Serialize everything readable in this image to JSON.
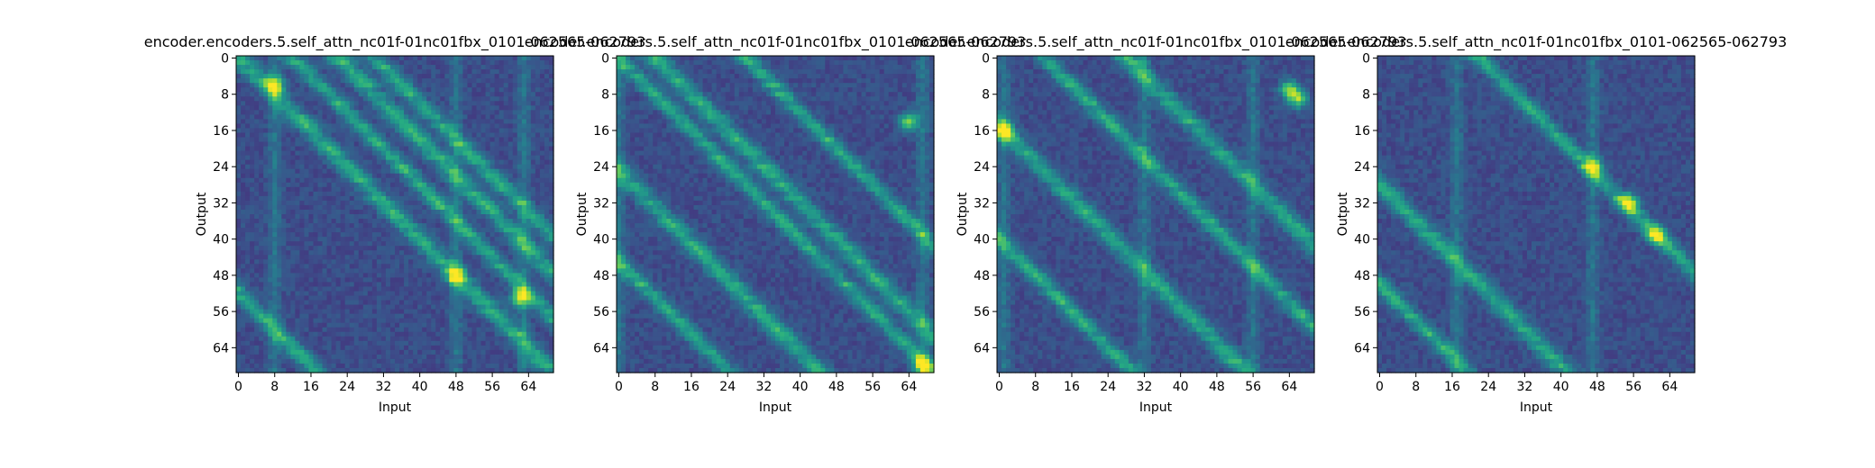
{
  "chart_data": [
    {
      "type": "heatmap",
      "title": "encoder.encoders.5.self_attn_nc01f-01nc01fbx_0101-062565-062793",
      "xlabel": "Input",
      "ylabel": "Output",
      "xticks": [
        "0",
        "8",
        "16",
        "24",
        "32",
        "40",
        "48",
        "56",
        "64"
      ],
      "yticks": [
        "0",
        "8",
        "16",
        "24",
        "32",
        "40",
        "48",
        "56",
        "64"
      ],
      "n_rows": 70,
      "n_cols": 70,
      "colormap": "viridis",
      "diagonal_offsets": [
        -52,
        0,
        12,
        22,
        30
      ],
      "vertical_bands": [
        8,
        48,
        63
      ],
      "hotspots": [
        [
          8,
          6
        ],
        [
          62,
          53
        ],
        [
          48,
          48
        ]
      ]
    },
    {
      "type": "heatmap",
      "title": "encoder.encoders.5.self_attn_nc01f-01nc01fbx_0101-062565-062793",
      "xlabel": "Input",
      "ylabel": "Output",
      "xticks": [
        "0",
        "8",
        "16",
        "24",
        "32",
        "40",
        "48",
        "56",
        "64"
      ],
      "yticks": [
        "0",
        "8",
        "16",
        "24",
        "32",
        "40",
        "48",
        "56",
        "64"
      ],
      "n_rows": 70,
      "n_cols": 70,
      "colormap": "viridis",
      "diagonal_offsets": [
        -45,
        -25,
        0,
        8,
        28
      ],
      "vertical_bands": [
        0,
        67
      ],
      "hotspots": [
        [
          67,
          68
        ],
        [
          64,
          14
        ]
      ]
    },
    {
      "type": "heatmap",
      "title": "encoder.encoders.5.self_attn_nc01f-01nc01fbx_0101-062565-062793",
      "xlabel": "Input",
      "ylabel": "Output",
      "xticks": [
        "0",
        "8",
        "16",
        "24",
        "32",
        "40",
        "48",
        "56",
        "64"
      ],
      "yticks": [
        "0",
        "8",
        "16",
        "24",
        "32",
        "40",
        "48",
        "56",
        "64"
      ],
      "n_rows": 70,
      "n_cols": 70,
      "colormap": "viridis",
      "diagonal_offsets": [
        -40,
        -15,
        10,
        28
      ],
      "vertical_bands": [
        1,
        32,
        56
      ],
      "hotspots": [
        [
          1,
          16
        ],
        [
          64,
          7
        ],
        [
          66,
          9
        ]
      ]
    },
    {
      "type": "heatmap",
      "title": "encoder.encoders.5.self_attn_nc01f-01nc01fbx_0101-062565-062793",
      "xlabel": "Input",
      "ylabel": "Output",
      "xticks": [
        "0",
        "8",
        "16",
        "24",
        "32",
        "40",
        "48",
        "56",
        "64"
      ],
      "yticks": [
        "0",
        "8",
        "16",
        "24",
        "32",
        "40",
        "48",
        "56",
        "64"
      ],
      "n_rows": 70,
      "n_cols": 70,
      "colormap": "viridis",
      "diagonal_offsets": [
        -50,
        -28,
        22
      ],
      "vertical_bands": [
        17,
        47
      ],
      "hotspots": [
        [
          47,
          24
        ],
        [
          55,
          32
        ],
        [
          61,
          39
        ]
      ]
    }
  ]
}
